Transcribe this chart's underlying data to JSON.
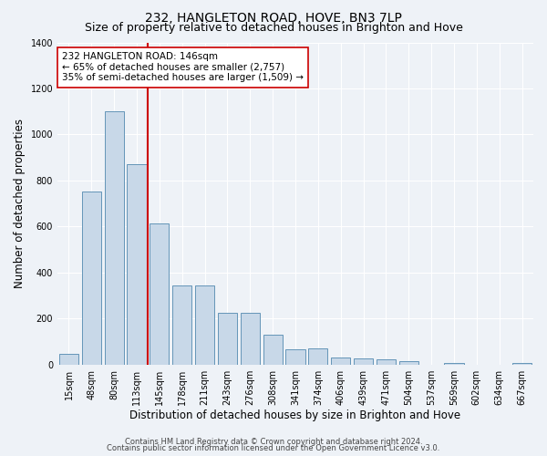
{
  "title": "232, HANGLETON ROAD, HOVE, BN3 7LP",
  "subtitle": "Size of property relative to detached houses in Brighton and Hove",
  "xlabel": "Distribution of detached houses by size in Brighton and Hove",
  "ylabel": "Number of detached properties",
  "categories": [
    "15sqm",
    "48sqm",
    "80sqm",
    "113sqm",
    "145sqm",
    "178sqm",
    "211sqm",
    "243sqm",
    "276sqm",
    "308sqm",
    "341sqm",
    "374sqm",
    "406sqm",
    "439sqm",
    "471sqm",
    "504sqm",
    "537sqm",
    "569sqm",
    "602sqm",
    "634sqm",
    "667sqm"
  ],
  "values": [
    48,
    750,
    1100,
    870,
    615,
    345,
    345,
    225,
    225,
    130,
    65,
    70,
    30,
    28,
    22,
    15,
    0,
    8,
    0,
    0,
    8
  ],
  "bar_color": "#c8d8e8",
  "bar_edge_color": "#6495b8",
  "vline_color": "#cc0000",
  "annotation_text": "232 HANGLETON ROAD: 146sqm\n← 65% of detached houses are smaller (2,757)\n35% of semi-detached houses are larger (1,509) →",
  "annotation_box_color": "#ffffff",
  "annotation_box_edge": "#cc0000",
  "ylim": [
    0,
    1400
  ],
  "yticks": [
    0,
    200,
    400,
    600,
    800,
    1000,
    1200,
    1400
  ],
  "footnote1": "Contains HM Land Registry data © Crown copyright and database right 2024.",
  "footnote2": "Contains public sector information licensed under the Open Government Licence v3.0.",
  "background_color": "#eef2f7",
  "plot_bg_color": "#eef2f7",
  "grid_color": "#ffffff",
  "title_fontsize": 10,
  "subtitle_fontsize": 9,
  "label_fontsize": 8.5,
  "tick_fontsize": 7,
  "annot_fontsize": 7.5,
  "footnote_fontsize": 6
}
